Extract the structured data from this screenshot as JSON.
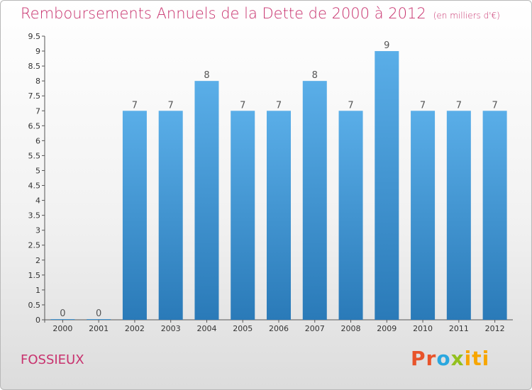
{
  "title": "Remboursements Annuels de la Dette de 2000 à 2012",
  "unit": "(en milliers d'€)",
  "city": "FOSSIEUX",
  "logo": "Proxiti",
  "colors": {
    "title": "#c8326e",
    "bar_top": "#5aaee8",
    "bar_bottom": "#2a7ab8"
  },
  "chart_data": {
    "type": "bar",
    "categories": [
      "2000",
      "2001",
      "2002",
      "2003",
      "2004",
      "2005",
      "2006",
      "2007",
      "2008",
      "2009",
      "2010",
      "2011",
      "2012"
    ],
    "values": [
      0,
      0,
      7,
      7,
      8,
      7,
      7,
      8,
      7,
      9,
      7,
      7,
      7
    ],
    "data_labels": [
      "0",
      "0",
      "7",
      "7",
      "8",
      "7",
      "7",
      "8",
      "7",
      "9",
      "7",
      "7",
      "7"
    ],
    "title": "Remboursements Annuels de la Dette de 2000 à 2012",
    "xlabel": "",
    "ylabel": "",
    "ylim": [
      0,
      9.5
    ],
    "yticks": [
      "0",
      "0.5",
      "1",
      "1.5",
      "2",
      "2.5",
      "3",
      "3.5",
      "4",
      "4.5",
      "5",
      "5.5",
      "6",
      "6.5",
      "7",
      "7.5",
      "8",
      "8.5",
      "9",
      "9.5"
    ],
    "grid": false,
    "legend": "none"
  }
}
